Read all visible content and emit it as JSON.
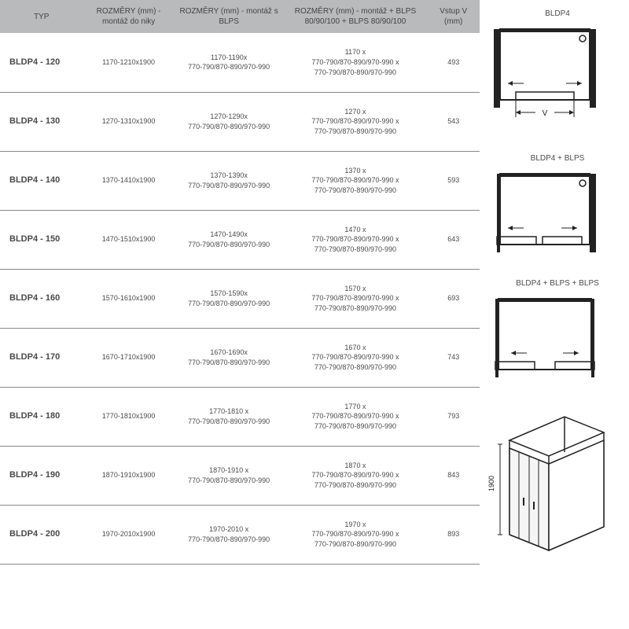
{
  "table": {
    "headers": {
      "typ": "TYP",
      "c1": "ROZMĚRY (mm) - montáž do niky",
      "c2": "ROZMĚRY (mm) - montáž s BLPS",
      "c3": "ROZMĚRY (mm) - montáž + BLPS 80/90/100 + BLPS 80/90/100",
      "c4": "Vstup V (mm)"
    },
    "rows": [
      {
        "typ": "BLDP4 - 120",
        "c1": "1170-1210x1900",
        "c2l1": "1170-1190x",
        "c2l2": "770-790/870-890/970-990",
        "c3l1": "1170 x",
        "c3l2": "770-790/870-890/970-990 x",
        "c3l3": "770-790/870-890/970-990",
        "c4": "493"
      },
      {
        "typ": "BLDP4 - 130",
        "c1": "1270-1310x1900",
        "c2l1": "1270-1290x",
        "c2l2": "770-790/870-890/970-990",
        "c3l1": "1270 x",
        "c3l2": "770-790/870-890/970-990 x",
        "c3l3": "770-790/870-890/970-990",
        "c4": "543"
      },
      {
        "typ": "BLDP4 - 140",
        "c1": "1370-1410x1900",
        "c2l1": "1370-1390x",
        "c2l2": "770-790/870-890/970-990",
        "c3l1": "1370 x",
        "c3l2": "770-790/870-890/970-990 x",
        "c3l3": "770-790/870-890/970-990",
        "c4": "593"
      },
      {
        "typ": "BLDP4 - 150",
        "c1": "1470-1510x1900",
        "c2l1": "1470-1490x",
        "c2l2": "770-790/870-890/970-990",
        "c3l1": "1470 x",
        "c3l2": "770-790/870-890/970-990 x",
        "c3l3": "770-790/870-890/970-990",
        "c4": "643"
      },
      {
        "typ": "BLDP4 - 160",
        "c1": "1570-1610x1900",
        "c2l1": "1570-1590x",
        "c2l2": "770-790/870-890/970-990",
        "c3l1": "1570 x",
        "c3l2": "770-790/870-890/970-990 x",
        "c3l3": "770-790/870-890/970-990",
        "c4": "693"
      },
      {
        "typ": "BLDP4 - 170",
        "c1": "1670-1710x1900",
        "c2l1": "1670-1690x",
        "c2l2": "770-790/870-890/970-990",
        "c3l1": "1670 x",
        "c3l2": "770-790/870-890/970-990 x",
        "c3l3": "770-790/870-890/970-990",
        "c4": "743"
      },
      {
        "typ": "BLDP4 - 180",
        "c1": "1770-1810x1900",
        "c2l1": "1770-1810 x",
        "c2l2": "770-790/870-890/970-990",
        "c3l1": "1770 x",
        "c3l2": "770-790/870-890/970-990 x",
        "c3l3": "770-790/870-890/970-990",
        "c4": "793"
      },
      {
        "typ": "BLDP4 - 190",
        "c1": "1870-1910x1900",
        "c2l1": "1870-1910 x",
        "c2l2": "770-790/870-890/970-990",
        "c3l1": "1870 x",
        "c3l2": "770-790/870-890/970-990 x",
        "c3l3": "770-790/870-890/970-990",
        "c4": "843"
      },
      {
        "typ": "BLDP4 - 200",
        "c1": "1970-2010x1900",
        "c2l1": "1970-2010 x",
        "c2l2": "770-790/870-890/970-990",
        "c3l1": "1970 x",
        "c3l2": "770-790/870-890/970-990 x",
        "c3l3": "770-790/870-890/970-990",
        "c4": "893"
      }
    ]
  },
  "diagrams": {
    "d1_title": "BLDP4",
    "d2_title": "BLDP4 + BLPS",
    "d3_title": "BLDP4 + BLPS + BLPS",
    "v_label": "V",
    "height_label": "1900",
    "colors": {
      "stroke": "#222222",
      "fill": "#ffffff"
    }
  }
}
